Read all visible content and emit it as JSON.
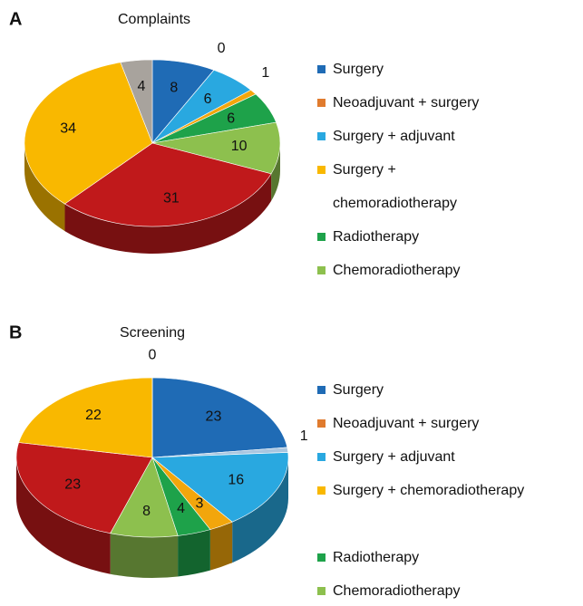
{
  "chart_data": [
    {
      "type": "pie",
      "panel": "A",
      "title": "Complaints",
      "values": [
        8,
        0,
        6,
        1,
        6,
        10,
        31,
        34,
        4
      ],
      "colors": [
        "#1f6bb5",
        "#e07b2e",
        "#29a8e0",
        "#f2a60c",
        "#1ea24a",
        "#8dc04e",
        "#c0191b",
        "#f9b800",
        "#a8a39d"
      ],
      "legend": [
        {
          "name": "Surgery",
          "color": "#1f6bb5"
        },
        {
          "name": "Neoadjuvant + surgery",
          "color": "#e07b2e"
        },
        {
          "name": "Surgery + adjuvant",
          "color": "#29a8e0"
        },
        {
          "name": "Surgery + chemoradiotherapy",
          "color": "#f9b800"
        },
        {
          "name": "Radiotherapy",
          "color": "#1ea24a"
        },
        {
          "name": "Chemoradiotherapy",
          "color": "#8dc04e"
        }
      ]
    },
    {
      "type": "pie",
      "panel": "B",
      "title": "Screening",
      "values": [
        23,
        1,
        16,
        3,
        4,
        8,
        23,
        22,
        0
      ],
      "colors": [
        "#1f6bb5",
        "#a9c6e0",
        "#29a8e0",
        "#f2a60c",
        "#1ea24a",
        "#8dc04e",
        "#c0191b",
        "#f9b800",
        "#e07b2e"
      ],
      "legend": [
        {
          "name": "Surgery",
          "color": "#1f6bb5"
        },
        {
          "name": "Neoadjuvant + surgery",
          "color": "#e07b2e"
        },
        {
          "name": "Surgery + adjuvant",
          "color": "#29a8e0"
        },
        {
          "name": "Surgery + chemoradiotherapy",
          "color": "#f9b800"
        },
        {
          "name": "Radiotherapy",
          "color": "#1ea24a"
        },
        {
          "name": "Chemoradiotherapy",
          "color": "#8dc04e"
        }
      ]
    }
  ]
}
